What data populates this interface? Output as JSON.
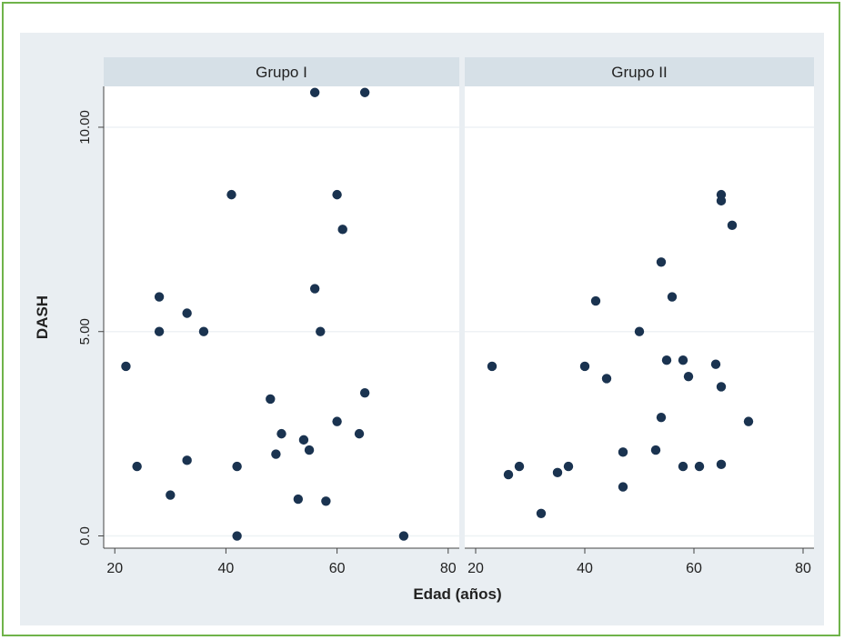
{
  "colors": {
    "frame_border": "#6fb34a",
    "plot_region_bg": "#e9eef2",
    "panel_bg": "#ffffff",
    "strip_bg": "#d6e0e7",
    "marker": "#1a3350",
    "gridline": "#eef2f5"
  },
  "chart_data": {
    "type": "scatter",
    "ylabel": "DASH",
    "xlabel": "Edad (años)",
    "xlim": [
      18,
      82
    ],
    "ylim": [
      -0.3,
      11.0
    ],
    "x_ticks": [
      "20",
      "40",
      "60",
      "80"
    ],
    "x_tick_values": [
      20,
      40,
      60,
      80
    ],
    "y_ticks": [
      "0.0",
      "5.00",
      "10.00"
    ],
    "y_tick_values": [
      0,
      5,
      10
    ],
    "grid": true,
    "panels": [
      {
        "name": "Grupo I",
        "points": [
          {
            "x": 22,
            "y": 4.15
          },
          {
            "x": 24,
            "y": 1.7
          },
          {
            "x": 28,
            "y": 5.85
          },
          {
            "x": 28,
            "y": 5.0
          },
          {
            "x": 30,
            "y": 1.0
          },
          {
            "x": 33,
            "y": 5.45
          },
          {
            "x": 33,
            "y": 1.85
          },
          {
            "x": 36,
            "y": 5.0
          },
          {
            "x": 41,
            "y": 8.35
          },
          {
            "x": 42,
            "y": 1.7
          },
          {
            "x": 42,
            "y": 0.0
          },
          {
            "x": 48,
            "y": 3.35
          },
          {
            "x": 49,
            "y": 2.0
          },
          {
            "x": 50,
            "y": 2.5
          },
          {
            "x": 53,
            "y": 0.9
          },
          {
            "x": 54,
            "y": 2.35
          },
          {
            "x": 55,
            "y": 2.1
          },
          {
            "x": 56,
            "y": 10.85
          },
          {
            "x": 56,
            "y": 6.05
          },
          {
            "x": 57,
            "y": 5.0
          },
          {
            "x": 58,
            "y": 0.85
          },
          {
            "x": 60,
            "y": 8.35
          },
          {
            "x": 60,
            "y": 2.8
          },
          {
            "x": 61,
            "y": 7.5
          },
          {
            "x": 64,
            "y": 2.5
          },
          {
            "x": 65,
            "y": 10.85
          },
          {
            "x": 65,
            "y": 3.5
          },
          {
            "x": 72,
            "y": 0.0
          }
        ]
      },
      {
        "name": "Grupo II",
        "points": [
          {
            "x": 23,
            "y": 4.15
          },
          {
            "x": 26,
            "y": 1.5
          },
          {
            "x": 28,
            "y": 1.7
          },
          {
            "x": 32,
            "y": 0.55
          },
          {
            "x": 35,
            "y": 1.55
          },
          {
            "x": 37,
            "y": 1.7
          },
          {
            "x": 40,
            "y": 4.15
          },
          {
            "x": 42,
            "y": 5.75
          },
          {
            "x": 44,
            "y": 3.85
          },
          {
            "x": 47,
            "y": 2.05
          },
          {
            "x": 47,
            "y": 1.2
          },
          {
            "x": 50,
            "y": 5.0
          },
          {
            "x": 53,
            "y": 2.1
          },
          {
            "x": 54,
            "y": 6.7
          },
          {
            "x": 54,
            "y": 2.9
          },
          {
            "x": 55,
            "y": 4.3
          },
          {
            "x": 56,
            "y": 5.85
          },
          {
            "x": 58,
            "y": 4.3
          },
          {
            "x": 58,
            "y": 1.7
          },
          {
            "x": 59,
            "y": 3.9
          },
          {
            "x": 61,
            "y": 1.7
          },
          {
            "x": 64,
            "y": 4.2
          },
          {
            "x": 65,
            "y": 8.35
          },
          {
            "x": 65,
            "y": 8.2
          },
          {
            "x": 65,
            "y": 3.65
          },
          {
            "x": 65,
            "y": 1.75
          },
          {
            "x": 67,
            "y": 7.6
          },
          {
            "x": 70,
            "y": 2.8
          }
        ]
      }
    ]
  }
}
